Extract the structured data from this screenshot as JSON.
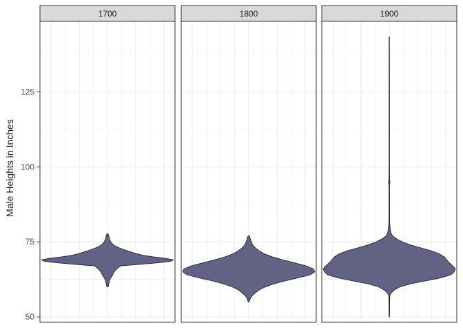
{
  "chart_data": {
    "type": "violin",
    "title": "",
    "xlabel": "",
    "ylabel": "Male Heights in Inches",
    "ylim": [
      48.2,
      148.5
    ],
    "yticks": [
      50,
      75,
      100,
      125
    ],
    "grid": true,
    "fill_color": "#626284",
    "outline_color": "#1a1a1a",
    "strip_color": "#d9d9d9",
    "panel_border_color": "#333333",
    "grid_color": "#ebebeb",
    "facets": [
      {
        "label": "1700",
        "min": 60,
        "max": 77.7,
        "profile": [
          [
            60,
            0.01
          ],
          [
            61,
            0.02
          ],
          [
            62,
            0.03
          ],
          [
            63,
            0.05
          ],
          [
            64,
            0.08
          ],
          [
            65,
            0.1
          ],
          [
            66,
            0.14
          ],
          [
            67,
            0.2
          ],
          [
            67.5,
            0.5
          ],
          [
            68,
            0.75
          ],
          [
            68.5,
            0.95
          ],
          [
            69,
            1.0
          ],
          [
            69.5,
            0.88
          ],
          [
            70,
            0.7
          ],
          [
            70.5,
            0.55
          ],
          [
            71,
            0.45
          ],
          [
            71.5,
            0.38
          ],
          [
            72,
            0.3
          ],
          [
            72.5,
            0.24
          ],
          [
            73,
            0.18
          ],
          [
            73.5,
            0.13
          ],
          [
            74,
            0.09
          ],
          [
            75,
            0.05
          ],
          [
            76,
            0.03
          ],
          [
            77,
            0.02
          ],
          [
            77.7,
            0.01
          ]
        ]
      },
      {
        "label": "1800",
        "min": 55,
        "max": 77,
        "profile": [
          [
            55,
            0.01
          ],
          [
            56,
            0.02
          ],
          [
            57,
            0.05
          ],
          [
            58,
            0.1
          ],
          [
            59,
            0.16
          ],
          [
            60,
            0.25
          ],
          [
            61,
            0.38
          ],
          [
            62,
            0.55
          ],
          [
            63,
            0.75
          ],
          [
            64,
            0.93
          ],
          [
            65,
            1.0
          ],
          [
            66,
            0.98
          ],
          [
            67,
            0.87
          ],
          [
            68,
            0.7
          ],
          [
            69,
            0.52
          ],
          [
            70,
            0.36
          ],
          [
            71,
            0.24
          ],
          [
            72,
            0.16
          ],
          [
            73,
            0.1
          ],
          [
            74,
            0.06
          ],
          [
            75,
            0.04
          ],
          [
            76,
            0.025
          ],
          [
            77,
            0.01
          ]
        ]
      },
      {
        "label": "1900",
        "min": 50,
        "max": 143.3,
        "profile": [
          [
            50,
            0.004
          ],
          [
            55,
            0.006
          ],
          [
            57,
            0.008
          ],
          [
            58,
            0.03
          ],
          [
            59,
            0.08
          ],
          [
            60,
            0.16
          ],
          [
            61,
            0.32
          ],
          [
            62,
            0.55
          ],
          [
            63,
            0.78
          ],
          [
            64,
            0.93
          ],
          [
            65,
            0.98
          ],
          [
            66,
            1.0
          ],
          [
            67,
            0.96
          ],
          [
            68,
            0.91
          ],
          [
            69,
            0.87
          ],
          [
            70,
            0.83
          ],
          [
            71,
            0.76
          ],
          [
            72,
            0.64
          ],
          [
            73,
            0.48
          ],
          [
            74,
            0.32
          ],
          [
            75,
            0.2
          ],
          [
            76,
            0.11
          ],
          [
            77,
            0.05
          ],
          [
            78,
            0.025
          ],
          [
            79,
            0.016
          ],
          [
            80,
            0.012
          ],
          [
            81,
            0.008
          ],
          [
            82,
            0.006
          ],
          [
            85,
            0.005
          ],
          [
            94,
            0.005
          ],
          [
            95,
            0.012
          ],
          [
            96,
            0.005
          ],
          [
            100,
            0.004
          ],
          [
            120,
            0.004
          ],
          [
            143.3,
            0.003
          ]
        ]
      }
    ]
  }
}
